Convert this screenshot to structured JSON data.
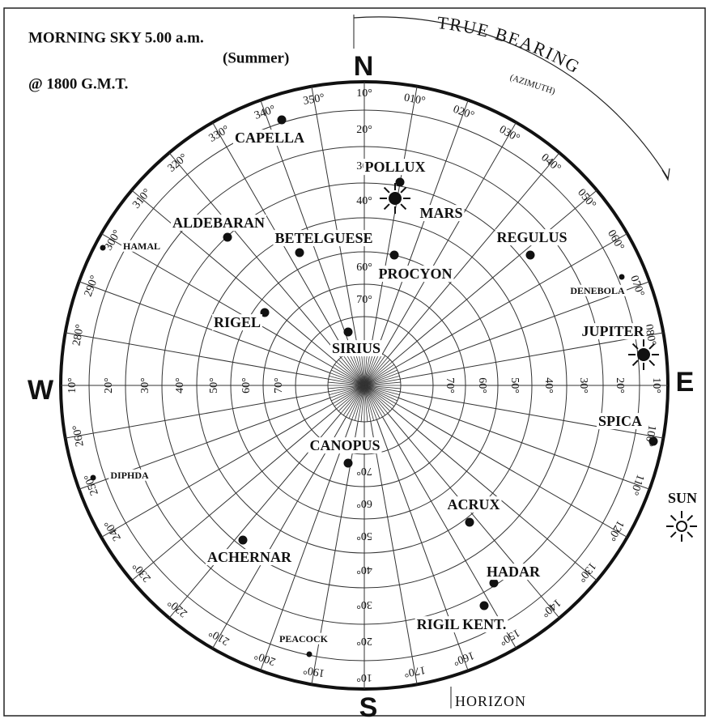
{
  "header": {
    "title": "MORNING SKY 5.00 a.m.",
    "season": "(Summer)",
    "time": "@ 1800 G.M.T."
  },
  "compass": {
    "n": "N",
    "e": "E",
    "s": "S",
    "w": "W"
  },
  "bearing_title": "TRUE BEARING",
  "bearing_subtitle": "(AZIMUTH)",
  "horizon": "HORIZON",
  "bearings": [
    "010°",
    "020°",
    "030°",
    "040°",
    "050°",
    "060°",
    "070°",
    "080°",
    "100°",
    "110°",
    "120°",
    "130°",
    "140°",
    "150°",
    "160°",
    "170°",
    "190°",
    "200°",
    "210°",
    "220°",
    "230°",
    "240°",
    "250°",
    "260°",
    "280°",
    "290°",
    "300°",
    "310°",
    "320°",
    "330°",
    "340°",
    "350°"
  ],
  "altitudes": [
    "10°",
    "20°",
    "30°",
    "40°",
    "50°",
    "60°",
    "70°"
  ],
  "stars": [
    {
      "name": "CAPELLA"
    },
    {
      "name": "POLLUX"
    },
    {
      "name": "MARS"
    },
    {
      "name": "ALDEBARAN"
    },
    {
      "name": "HAMAL"
    },
    {
      "name": "BETELGUESE"
    },
    {
      "name": "REGULUS"
    },
    {
      "name": "PROCYON"
    },
    {
      "name": "DENEBOLA"
    },
    {
      "name": "RIGEL"
    },
    {
      "name": "SIRIUS"
    },
    {
      "name": "JUPITER"
    },
    {
      "name": "SPICA"
    },
    {
      "name": "CANOPUS"
    },
    {
      "name": "DIPHDA"
    },
    {
      "name": "SUN"
    },
    {
      "name": "ACRUX"
    },
    {
      "name": "ACHERNAR"
    },
    {
      "name": "HADAR"
    },
    {
      "name": "RIGIL KENT."
    },
    {
      "name": "PEACOCK"
    }
  ]
}
